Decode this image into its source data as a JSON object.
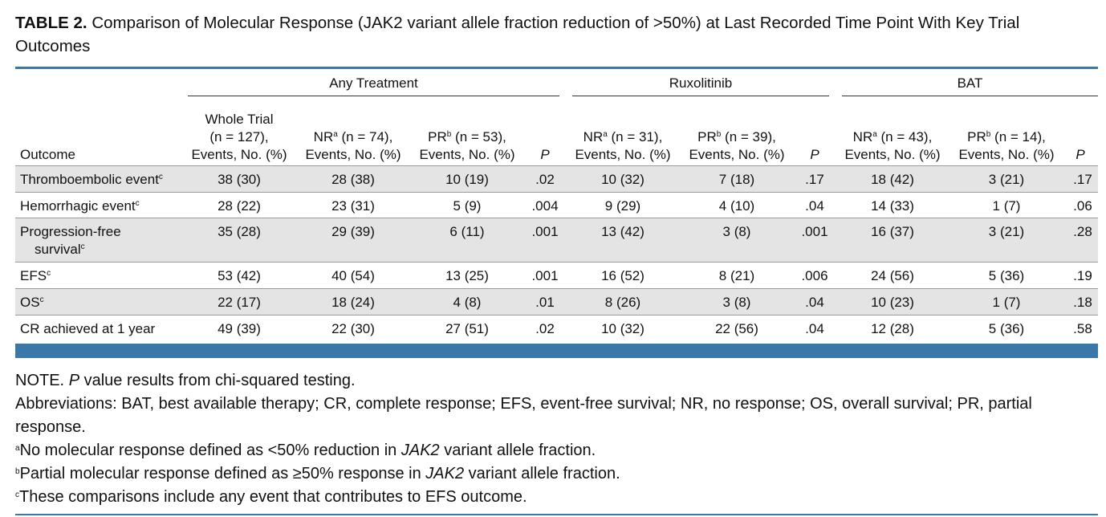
{
  "caption": {
    "label": "TABLE 2.",
    "text": "Comparison of Molecular Response (JAK2 variant allele fraction reduction of >50%) at Last Recorded Time Point With Key Trial Outcomes"
  },
  "groups": [
    "Any Treatment",
    "Ruxolitinib",
    "BAT"
  ],
  "header": {
    "outcome": "Outcome",
    "whole_trial": [
      "Whole Trial",
      "(n = 127),",
      "Events, No. (%)"
    ],
    "any_nr": {
      "pre": "NR",
      "sup": "a",
      "post": " (n = 74),",
      "line2": "Events, No. (%)"
    },
    "any_pr": {
      "pre": "PR",
      "sup": "b",
      "post": " (n = 53),",
      "line2": "Events, No. (%)"
    },
    "rux_nr": {
      "pre": "NR",
      "sup": "a",
      "post": " (n = 31),",
      "line2": "Events, No. (%)"
    },
    "rux_pr": {
      "pre": "PR",
      "sup": "b",
      "post": " (n = 39),",
      "line2": "Events, No. (%)"
    },
    "bat_nr": {
      "pre": "NR",
      "sup": "a",
      "post": " (n = 43),",
      "line2": "Events, No. (%)"
    },
    "bat_pr": {
      "pre": "PR",
      "sup": "b",
      "post": " (n = 14),",
      "line2": "Events, No. (%)"
    },
    "p": "P"
  },
  "rows": [
    {
      "outcome": "Thromboembolic event",
      "sup": "c",
      "cont": "",
      "values": [
        "38 (30)",
        "28 (38)",
        "10 (19)",
        ".02",
        "10 (32)",
        "7 (18)",
        ".17",
        "18 (42)",
        "3 (21)",
        ".17"
      ]
    },
    {
      "outcome": "Hemorrhagic event",
      "sup": "c",
      "cont": "",
      "values": [
        "28 (22)",
        "23 (31)",
        "5 (9)",
        ".004",
        "9 (29)",
        "4 (10)",
        ".04",
        "14 (33)",
        "1 (7)",
        ".06"
      ]
    },
    {
      "outcome": "Progression-free",
      "sup": "c",
      "cont": "survival",
      "values": [
        "35 (28)",
        "29 (39)",
        "6 (11)",
        ".001",
        "13 (42)",
        "3 (8)",
        ".001",
        "16 (37)",
        "3 (21)",
        ".28"
      ]
    },
    {
      "outcome": "EFS",
      "sup": "c",
      "cont": "",
      "values": [
        "53 (42)",
        "40 (54)",
        "13 (25)",
        ".001",
        "16 (52)",
        "8 (21)",
        ".006",
        "24 (56)",
        "5 (36)",
        ".19"
      ]
    },
    {
      "outcome": "OS",
      "sup": "c",
      "cont": "",
      "values": [
        "22 (17)",
        "18 (24)",
        "4 (8)",
        ".01",
        "8 (26)",
        "3 (8)",
        ".04",
        "10 (23)",
        "1 (7)",
        ".18"
      ]
    },
    {
      "outcome": "CR achieved at 1 year",
      "sup": "",
      "cont": "",
      "values": [
        "49 (39)",
        "22 (30)",
        "27 (51)",
        ".02",
        "10 (32)",
        "22 (56)",
        ".04",
        "12 (28)",
        "5 (36)",
        ".58"
      ]
    }
  ],
  "notes": {
    "note_prefix": "NOTE.",
    "note_p": "P",
    "note_rest": "value results from chi-squared testing.",
    "abbreviations": "Abbreviations: BAT, best available therapy; CR, complete response; EFS, event-free survival; NR, no response; OS, overall survival; PR, partial response.",
    "fn_a": {
      "mark": "a",
      "pre": "No molecular response defined as <50% reduction in ",
      "gene": "JAK2",
      "post": " variant allele fraction."
    },
    "fn_b": {
      "mark": "b",
      "pre": "Partial molecular response defined as ≥50% response in ",
      "gene": "JAK2",
      "post": " variant allele fraction."
    },
    "fn_c": {
      "mark": "c",
      "text": "These comparisons include any event that contributes to EFS outcome."
    }
  },
  "colors": {
    "accent": "#3b78aa",
    "shade": "#e4e4e4"
  }
}
